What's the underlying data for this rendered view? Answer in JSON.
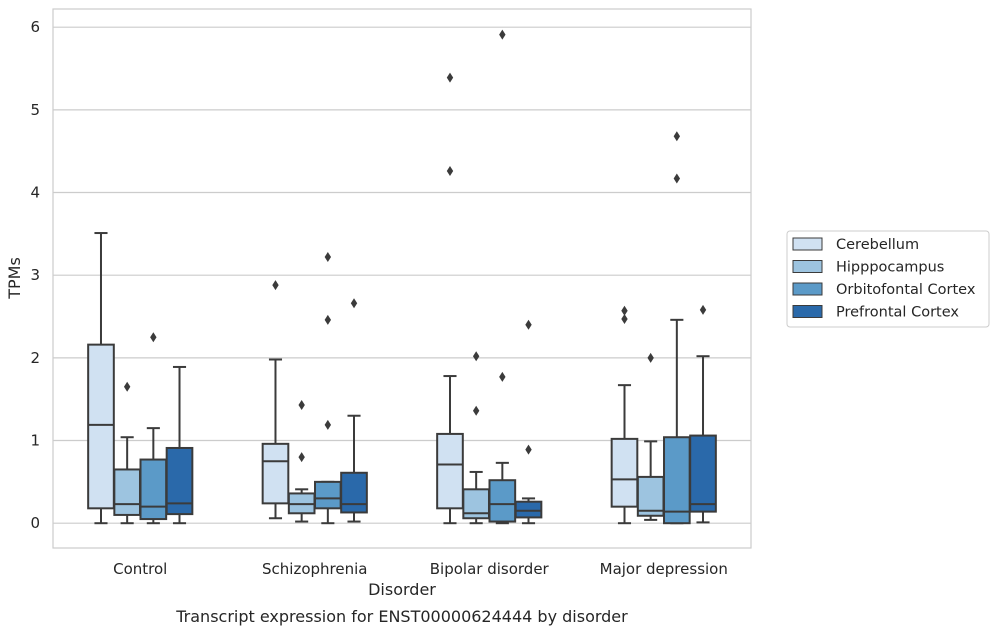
{
  "chart_data": {
    "type": "box",
    "title": "",
    "caption": "Transcript expression for ENST00000624444 by disorder",
    "xlabel": "Disorder",
    "ylabel": "TPMs",
    "ylim": [
      -0.3,
      6.22
    ],
    "yticks": [
      "0",
      "1",
      "2",
      "3",
      "4",
      "5",
      "6"
    ],
    "categories": [
      "Control",
      "Schizophrenia",
      "Bipolar disorder",
      "Major depression"
    ],
    "grid": "horizontal",
    "legend_position": "right, outside plot",
    "series": [
      {
        "name": "Cerebellum",
        "color": "#d0e1f2",
        "boxes": [
          {
            "min": 0.0,
            "q1": 0.18,
            "median": 1.19,
            "q3": 2.16,
            "max": 3.51,
            "outliers": []
          },
          {
            "min": 0.06,
            "q1": 0.24,
            "median": 0.75,
            "q3": 0.96,
            "max": 1.98,
            "outliers": [
              2.88
            ]
          },
          {
            "min": 0.0,
            "q1": 0.18,
            "median": 0.71,
            "q3": 1.08,
            "max": 1.78,
            "outliers": [
              4.26,
              5.39
            ]
          },
          {
            "min": 0.0,
            "q1": 0.2,
            "median": 0.53,
            "q3": 1.02,
            "max": 1.67,
            "outliers": [
              2.47,
              2.57
            ]
          }
        ]
      },
      {
        "name": "Hipppocampus",
        "color": "#9dc4e0",
        "boxes": [
          {
            "min": 0.0,
            "q1": 0.1,
            "median": 0.23,
            "q3": 0.65,
            "max": 1.04,
            "outliers": [
              1.65
            ]
          },
          {
            "min": 0.02,
            "q1": 0.12,
            "median": 0.23,
            "q3": 0.36,
            "max": 0.41,
            "outliers": [
              0.8,
              1.43
            ]
          },
          {
            "min": 0.0,
            "q1": 0.06,
            "median": 0.12,
            "q3": 0.41,
            "max": 0.62,
            "outliers": [
              1.36,
              2.02
            ]
          },
          {
            "min": 0.04,
            "q1": 0.09,
            "median": 0.15,
            "q3": 0.56,
            "max": 0.99,
            "outliers": [
              2.0
            ]
          }
        ]
      },
      {
        "name": "Orbitofontal Cortex",
        "color": "#5b9ac8",
        "boxes": [
          {
            "min": 0.0,
            "q1": 0.05,
            "median": 0.2,
            "q3": 0.77,
            "max": 1.15,
            "outliers": [
              2.25
            ]
          },
          {
            "min": 0.0,
            "q1": 0.18,
            "median": 0.3,
            "q3": 0.5,
            "max": 0.5,
            "outliers": [
              1.19,
              2.46,
              3.22
            ]
          },
          {
            "min": 0.0,
            "q1": 0.02,
            "median": 0.23,
            "q3": 0.52,
            "max": 0.73,
            "outliers": [
              1.77,
              5.91
            ]
          },
          {
            "min": 0.0,
            "q1": 0.0,
            "median": 0.14,
            "q3": 1.04,
            "max": 2.46,
            "outliers": [
              4.17,
              4.68
            ]
          }
        ]
      },
      {
        "name": "Prefrontal Cortex",
        "color": "#2a69aa",
        "boxes": [
          {
            "min": 0.0,
            "q1": 0.11,
            "median": 0.24,
            "q3": 0.91,
            "max": 1.89,
            "outliers": []
          },
          {
            "min": 0.02,
            "q1": 0.13,
            "median": 0.23,
            "q3": 0.61,
            "max": 1.3,
            "outliers": [
              2.66
            ]
          },
          {
            "min": 0.0,
            "q1": 0.07,
            "median": 0.15,
            "q3": 0.26,
            "max": 0.3,
            "outliers": [
              0.89,
              2.4
            ]
          },
          {
            "min": 0.01,
            "q1": 0.14,
            "median": 0.23,
            "q3": 1.06,
            "max": 2.02,
            "outliers": [
              2.58
            ]
          }
        ]
      }
    ]
  }
}
